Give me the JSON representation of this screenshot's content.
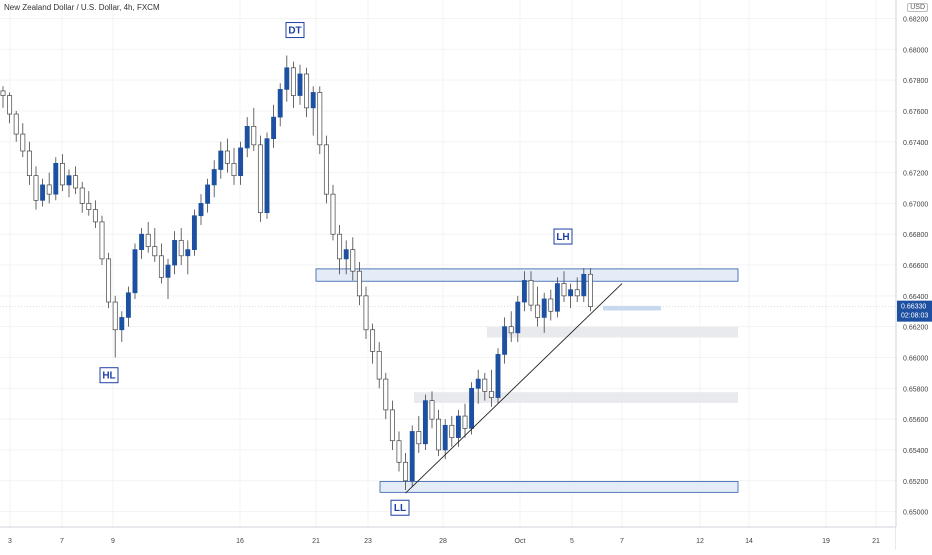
{
  "chart_data": {
    "type": "candlestick",
    "title": "New Zealand Dollar / U.S. Dollar, 4h, FXCM",
    "currency": "USD",
    "ylim": [
      0.649,
      0.6832
    ],
    "y_ticks": [
      0.65,
      0.652,
      0.654,
      0.656,
      0.658,
      0.66,
      0.662,
      0.664,
      0.666,
      0.668,
      0.67,
      0.672,
      0.674,
      0.676,
      0.678,
      0.68,
      0.682
    ],
    "x_ticks": [
      "3",
      "7",
      "9",
      "16",
      "21",
      "23",
      "28",
      "Oct",
      "5",
      "7",
      "12",
      "14",
      "19",
      "21"
    ],
    "last_price": "0.66330",
    "countdown": "02:08:03",
    "annotations": [
      "DT",
      "HL",
      "LL",
      "LH"
    ],
    "colors": {
      "up": "#1e50a2",
      "down": "#ffffff",
      "wick": "#444444",
      "zone_fill": "#e3ecf7",
      "zone_stroke": "#2a5aa8",
      "gray_zone": "#e8eaed",
      "grid": "#f3f3f3",
      "price_tag": "#1e50a2"
    },
    "candles": [
      [
        0.6773,
        0.6776,
        0.6762,
        0.677
      ],
      [
        0.677,
        0.6772,
        0.6752,
        0.6758
      ],
      [
        0.6758,
        0.676,
        0.674,
        0.6745
      ],
      [
        0.6745,
        0.6752,
        0.673,
        0.6734
      ],
      [
        0.6734,
        0.674,
        0.6712,
        0.6718
      ],
      [
        0.6718,
        0.6724,
        0.6696,
        0.6702
      ],
      [
        0.6702,
        0.6716,
        0.6698,
        0.6712
      ],
      [
        0.6712,
        0.672,
        0.67,
        0.6706
      ],
      [
        0.6706,
        0.673,
        0.6702,
        0.6726
      ],
      [
        0.6726,
        0.6732,
        0.6708,
        0.6712
      ],
      [
        0.6712,
        0.6722,
        0.6704,
        0.6718
      ],
      [
        0.6718,
        0.6724,
        0.6706,
        0.671
      ],
      [
        0.671,
        0.6714,
        0.6694,
        0.67
      ],
      [
        0.67,
        0.6708,
        0.6692,
        0.6696
      ],
      [
        0.6696,
        0.6702,
        0.6684,
        0.6688
      ],
      [
        0.6688,
        0.6692,
        0.666,
        0.6664
      ],
      [
        0.6664,
        0.6668,
        0.6632,
        0.6636
      ],
      [
        0.6636,
        0.664,
        0.66,
        0.6618
      ],
      [
        0.6618,
        0.663,
        0.661,
        0.6626
      ],
      [
        0.6626,
        0.6646,
        0.662,
        0.6642
      ],
      [
        0.6642,
        0.6674,
        0.6638,
        0.667
      ],
      [
        0.667,
        0.6684,
        0.6664,
        0.668
      ],
      [
        0.668,
        0.6688,
        0.6668,
        0.6672
      ],
      [
        0.6672,
        0.6684,
        0.6662,
        0.6666
      ],
      [
        0.6666,
        0.6674,
        0.6648,
        0.6652
      ],
      [
        0.6652,
        0.6664,
        0.6638,
        0.666
      ],
      [
        0.666,
        0.6682,
        0.6654,
        0.6676
      ],
      [
        0.6676,
        0.6684,
        0.666,
        0.6666
      ],
      [
        0.6666,
        0.6676,
        0.6654,
        0.667
      ],
      [
        0.667,
        0.6696,
        0.6666,
        0.6692
      ],
      [
        0.6692,
        0.6706,
        0.6686,
        0.67
      ],
      [
        0.67,
        0.6716,
        0.6694,
        0.6712
      ],
      [
        0.6712,
        0.6728,
        0.6704,
        0.6722
      ],
      [
        0.6722,
        0.674,
        0.6716,
        0.6734
      ],
      [
        0.6734,
        0.6742,
        0.672,
        0.6726
      ],
      [
        0.6726,
        0.6736,
        0.6712,
        0.6718
      ],
      [
        0.6718,
        0.674,
        0.6712,
        0.6736
      ],
      [
        0.6736,
        0.6756,
        0.673,
        0.675
      ],
      [
        0.675,
        0.6762,
        0.6734,
        0.6738
      ],
      [
        0.6738,
        0.6744,
        0.6688,
        0.6694
      ],
      [
        0.6694,
        0.6746,
        0.669,
        0.6742
      ],
      [
        0.6742,
        0.6764,
        0.6736,
        0.6756
      ],
      [
        0.6756,
        0.6778,
        0.675,
        0.6774
      ],
      [
        0.6774,
        0.6796,
        0.6766,
        0.6788
      ],
      [
        0.6788,
        0.6792,
        0.6762,
        0.677
      ],
      [
        0.677,
        0.679,
        0.6764,
        0.6784
      ],
      [
        0.6784,
        0.6788,
        0.6756,
        0.6762
      ],
      [
        0.6762,
        0.6776,
        0.6744,
        0.6772
      ],
      [
        0.6772,
        0.6776,
        0.6732,
        0.6738
      ],
      [
        0.6738,
        0.6744,
        0.67,
        0.6706
      ],
      [
        0.6706,
        0.6712,
        0.6676,
        0.668
      ],
      [
        0.668,
        0.6686,
        0.6654,
        0.6664
      ],
      [
        0.6664,
        0.6676,
        0.6654,
        0.667
      ],
      [
        0.667,
        0.6678,
        0.665,
        0.6656
      ],
      [
        0.6656,
        0.6662,
        0.6634,
        0.664
      ],
      [
        0.664,
        0.6646,
        0.6612,
        0.6618
      ],
      [
        0.6618,
        0.6622,
        0.6596,
        0.6604
      ],
      [
        0.6604,
        0.661,
        0.658,
        0.6586
      ],
      [
        0.6586,
        0.659,
        0.656,
        0.6566
      ],
      [
        0.6566,
        0.6572,
        0.654,
        0.6546
      ],
      [
        0.6546,
        0.6552,
        0.6526,
        0.6532
      ],
      [
        0.6532,
        0.6538,
        0.6514,
        0.652
      ],
      [
        0.652,
        0.6556,
        0.6516,
        0.6552
      ],
      [
        0.6552,
        0.6562,
        0.6538,
        0.6544
      ],
      [
        0.6544,
        0.6576,
        0.654,
        0.6572
      ],
      [
        0.6572,
        0.6578,
        0.6554,
        0.656
      ],
      [
        0.656,
        0.6566,
        0.6536,
        0.654
      ],
      [
        0.654,
        0.656,
        0.6534,
        0.6556
      ],
      [
        0.6556,
        0.6562,
        0.6542,
        0.6548
      ],
      [
        0.6548,
        0.6566,
        0.6542,
        0.6562
      ],
      [
        0.6562,
        0.657,
        0.6548,
        0.6554
      ],
      [
        0.6554,
        0.6584,
        0.655,
        0.658
      ],
      [
        0.658,
        0.6592,
        0.657,
        0.6586
      ],
      [
        0.6586,
        0.659,
        0.6572,
        0.6578
      ],
      [
        0.6578,
        0.6592,
        0.6568,
        0.6574
      ],
      [
        0.6574,
        0.6606,
        0.657,
        0.6602
      ],
      [
        0.6602,
        0.6626,
        0.6596,
        0.662
      ],
      [
        0.662,
        0.663,
        0.661,
        0.6616
      ],
      [
        0.6616,
        0.664,
        0.661,
        0.6636
      ],
      [
        0.6636,
        0.6656,
        0.663,
        0.665
      ],
      [
        0.665,
        0.6656,
        0.663,
        0.6634
      ],
      [
        0.6634,
        0.6646,
        0.662,
        0.6626
      ],
      [
        0.6626,
        0.6642,
        0.6616,
        0.6638
      ],
      [
        0.6638,
        0.6644,
        0.6624,
        0.663
      ],
      [
        0.663,
        0.6652,
        0.6626,
        0.6648
      ],
      [
        0.6648,
        0.6656,
        0.6636,
        0.664
      ],
      [
        0.664,
        0.6648,
        0.6632,
        0.6644
      ],
      [
        0.6644,
        0.6652,
        0.6636,
        0.664
      ],
      [
        0.664,
        0.6658,
        0.6636,
        0.6654
      ],
      [
        0.6654,
        0.6658,
        0.663,
        0.6633
      ]
    ]
  }
}
